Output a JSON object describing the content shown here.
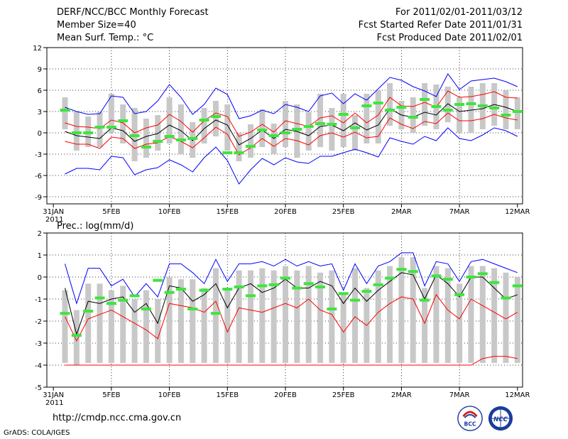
{
  "header": {
    "title": "DERF/NCC/BCC Monthly Forecast",
    "member_size": "Member Size=40",
    "variable": "Mean Surf. Temp.: °C",
    "period": "For 2011/02/01-2011/03/12",
    "start_date": "Fcst Started Refer Date 2011/01/31",
    "produced_date": "Fcst Produced Date 2011/02/01"
  },
  "footer": {
    "url": "http://cmdp.ncc.cma.gov.cn",
    "credit": "GrADS: COLA/IGES",
    "logo_bcc": "BCC",
    "logo_ncc": "NCC"
  },
  "colors": {
    "mean": "#000000",
    "spread": "#ff0000",
    "extreme": "#0000ff",
    "median": "#3ce63c",
    "box": "#c8c8c8"
  },
  "chart_data": [
    {
      "type": "line",
      "title": "Mean Surf. Temp.: °C",
      "xlabels": [
        "31JAN\n2011",
        "5FEB",
        "10FEB",
        "15FEB",
        "20FEB",
        "25FEB",
        "2MAR",
        "7MAR",
        "12MAR"
      ],
      "xlabel_days": [
        0,
        5,
        10,
        15,
        20,
        25,
        30,
        35,
        40
      ],
      "ylim": [
        -10,
        12
      ],
      "yticks": [
        12,
        9,
        6,
        3,
        0,
        -3,
        -6,
        -9
      ],
      "days": [
        1,
        2,
        3,
        4,
        5,
        6,
        7,
        8,
        9,
        10,
        11,
        12,
        13,
        14,
        15,
        16,
        17,
        18,
        19,
        20,
        21,
        22,
        23,
        24,
        25,
        26,
        27,
        28,
        29,
        30,
        31,
        32,
        33,
        34,
        35,
        36,
        37,
        38,
        39,
        40
      ],
      "series": [
        {
          "name": "upper",
          "color": "#0000ff",
          "values": [
            3.6,
            3.0,
            2.6,
            2.7,
            5.2,
            5.0,
            2.7,
            3.0,
            4.5,
            6.8,
            5.0,
            2.6,
            4.0,
            6.3,
            5.4,
            2.0,
            2.4,
            3.2,
            2.7,
            4.0,
            3.6,
            3.0,
            5.2,
            5.6,
            4.1,
            5.5,
            4.6,
            6.2,
            7.8,
            7.4,
            6.5,
            5.9,
            5.1,
            8.3,
            6.1,
            7.3,
            7.5,
            7.7,
            7.2,
            6.5
          ]
        },
        {
          "name": "upper-spread",
          "color": "#ff0000",
          "values": [
            1.4,
            0.9,
            0.8,
            0.6,
            1.8,
            1.4,
            0.0,
            0.7,
            1.1,
            2.6,
            1.6,
            0.1,
            1.7,
            2.8,
            2.3,
            -0.5,
            0.1,
            1.2,
            0.1,
            1.7,
            1.3,
            0.9,
            2.1,
            2.4,
            1.4,
            2.8,
            1.4,
            2.5,
            5.0,
            3.8,
            3.7,
            4.3,
            3.6,
            5.9,
            5.0,
            5.1,
            5.4,
            5.8,
            5.0,
            4.9
          ]
        },
        {
          "name": "mean",
          "color": "#000000",
          "values": [
            0.2,
            -0.4,
            -0.6,
            -0.8,
            0.7,
            0.3,
            -1.2,
            -0.5,
            -0.1,
            1.1,
            0.3,
            -1.1,
            0.6,
            1.8,
            1.1,
            -1.7,
            -0.8,
            0.4,
            -0.8,
            0.5,
            0.2,
            -0.4,
            0.9,
            1.1,
            0.3,
            1.4,
            0.4,
            1.1,
            3.4,
            2.5,
            2.2,
            2.9,
            2.5,
            4.1,
            3.0,
            3.2,
            3.4,
            4.0,
            3.6,
            3.0
          ]
        },
        {
          "name": "lower-spread",
          "color": "#ff0000",
          "values": [
            -1.2,
            -1.6,
            -1.6,
            -2.2,
            -0.6,
            -0.8,
            -2.2,
            -1.6,
            -1.4,
            -0.5,
            -1.2,
            -2.1,
            -0.7,
            0.8,
            -0.2,
            -3.1,
            -2.1,
            -0.8,
            -1.9,
            -0.8,
            -1.1,
            -1.7,
            -0.4,
            0.0,
            -0.6,
            0.1,
            -0.7,
            -0.5,
            2.1,
            1.2,
            0.6,
            1.6,
            1.3,
            2.8,
            1.7,
            1.7,
            2.0,
            2.6,
            2.1,
            1.8
          ]
        },
        {
          "name": "lower",
          "color": "#0000ff",
          "values": [
            -5.8,
            -5.0,
            -5.0,
            -5.2,
            -3.3,
            -3.5,
            -5.9,
            -5.2,
            -4.9,
            -3.8,
            -4.5,
            -5.5,
            -3.5,
            -2.0,
            -3.9,
            -7.2,
            -5.2,
            -3.6,
            -4.5,
            -3.5,
            -4.1,
            -4.3,
            -3.3,
            -3.3,
            -2.8,
            -2.3,
            -2.8,
            -3.4,
            -0.7,
            -1.2,
            -1.6,
            -0.5,
            -1.1,
            0.7,
            -0.8,
            -1.1,
            -0.3,
            0.7,
            0.3,
            -0.5
          ]
        }
      ],
      "median": [
        3.2,
        0.0,
        0.0,
        0.8,
        0.8,
        1.7,
        -0.4,
        -2.0,
        -1.2,
        -0.5,
        -1.0,
        -0.8,
        1.8,
        2.3,
        -2.8,
        -2.8,
        -1.9,
        0.4,
        -0.4,
        0.0,
        0.5,
        0.9,
        1.3,
        1.2,
        2.6,
        0.7,
        3.8,
        4.2,
        3.2,
        3.6,
        2.2,
        4.7,
        3.7,
        3.2,
        4.0,
        4.1,
        3.8,
        3.5,
        2.5,
        3.0
      ],
      "box_high": [
        5.0,
        3.0,
        2.3,
        3.0,
        5.5,
        4.0,
        3.5,
        2.0,
        2.5,
        5.0,
        4.0,
        1.5,
        3.5,
        4.5,
        4.0,
        0.0,
        1.2,
        3.3,
        1.3,
        4.5,
        4.0,
        2.9,
        5.5,
        3.5,
        5.5,
        2.5,
        5.5,
        6.0,
        7.0,
        4.5,
        5.0,
        7.0,
        6.8,
        6.5,
        5.0,
        6.5,
        7.0,
        7.0,
        6.0,
        5.0
      ],
      "box_low": [
        0.5,
        -2.5,
        -2.0,
        -2.0,
        0.0,
        -1.5,
        -4.0,
        -3.5,
        -2.5,
        -1.5,
        -3.0,
        -3.5,
        -1.5,
        -0.5,
        -2.5,
        -4.0,
        -3.5,
        -2.0,
        -3.0,
        -2.0,
        -3.5,
        -2.5,
        -2.0,
        -2.5,
        -2.0,
        -2.5,
        -1.5,
        -1.5,
        1.0,
        0.5,
        0.0,
        1.0,
        0.5,
        1.5,
        0.0,
        0.0,
        0.5,
        1.0,
        0.5,
        0.5
      ]
    },
    {
      "type": "line",
      "title": "Prec.: log(mm/d)",
      "xlabels": [
        "31JAN\n2011",
        "5FEB",
        "10FEB",
        "15FEB",
        "20FEB",
        "25FEB",
        "2MAR",
        "7MAR",
        "12MAR"
      ],
      "xlabel_days": [
        0,
        5,
        10,
        15,
        20,
        25,
        30,
        35,
        40
      ],
      "ylim": [
        -5,
        2
      ],
      "yticks": [
        2,
        1,
        0,
        -1,
        -2,
        -3,
        -4,
        -5
      ],
      "days": [
        1,
        2,
        3,
        4,
        5,
        6,
        7,
        8,
        9,
        10,
        11,
        12,
        13,
        14,
        15,
        16,
        17,
        18,
        19,
        20,
        21,
        22,
        23,
        24,
        25,
        26,
        27,
        28,
        29,
        30,
        31,
        32,
        33,
        34,
        35,
        36,
        37,
        38,
        39,
        40
      ],
      "series": [
        {
          "name": "upper",
          "color": "#0000ff",
          "values": [
            0.6,
            -1.2,
            0.4,
            0.4,
            -0.4,
            -0.1,
            -0.9,
            -0.3,
            -0.9,
            0.6,
            0.6,
            0.2,
            -0.3,
            0.8,
            -0.2,
            0.6,
            0.6,
            0.7,
            0.5,
            0.8,
            0.5,
            0.7,
            0.5,
            0.6,
            -0.6,
            0.6,
            -0.3,
            0.5,
            0.7,
            1.1,
            1.1,
            -0.4,
            0.7,
            0.6,
            -0.2,
            0.7,
            0.8,
            0.6,
            0.4,
            0.2
          ]
        },
        {
          "name": "mean",
          "color": "#000000",
          "values": [
            -0.5,
            -2.6,
            -1.1,
            -1.2,
            -1.0,
            -0.9,
            -1.6,
            -1.2,
            -2.1,
            -0.4,
            -0.5,
            -1.1,
            -0.8,
            -0.3,
            -1.4,
            -0.5,
            -0.3,
            -0.7,
            -0.5,
            -0.1,
            -0.5,
            -0.5,
            -0.2,
            -0.4,
            -1.2,
            -0.5,
            -1.1,
            -0.6,
            -0.2,
            0.2,
            0.1,
            -1.0,
            0.1,
            -0.3,
            -0.9,
            0.0,
            0.0,
            -0.5,
            -1.0,
            -0.8
          ]
        },
        {
          "name": "lower-spread",
          "color": "#ff0000",
          "values": [
            -1.8,
            -2.9,
            -1.9,
            -1.7,
            -1.5,
            -1.8,
            -2.1,
            -2.4,
            -2.8,
            -1.2,
            -1.3,
            -1.4,
            -1.6,
            -1.1,
            -2.5,
            -1.4,
            -1.5,
            -1.6,
            -1.4,
            -1.2,
            -1.4,
            -1.0,
            -1.5,
            -1.7,
            -2.5,
            -1.8,
            -2.2,
            -1.6,
            -1.2,
            -0.9,
            -1.0,
            -2.1,
            -0.8,
            -1.5,
            -1.9,
            -1.0,
            -1.3,
            -1.6,
            -1.9,
            -1.6
          ]
        },
        {
          "name": "floor",
          "color": "#ff0000",
          "values": [
            -4.0,
            -4.0,
            -4.0,
            -4.0,
            -4.0,
            -4.0,
            -4.0,
            -4.0,
            -4.0,
            -4.0,
            -4.0,
            -4.0,
            -4.0,
            -4.0,
            -4.0,
            -4.0,
            -4.0,
            -4.0,
            -4.0,
            -4.0,
            -4.0,
            -4.0,
            -4.0,
            -4.0,
            -4.0,
            -4.0,
            -4.0,
            -4.0,
            -4.0,
            -4.0,
            -4.0,
            -4.0,
            -4.0,
            -4.0,
            -4.0,
            -4.0,
            -3.7,
            -3.6,
            -3.6,
            -3.7
          ]
        }
      ],
      "median": [
        -1.65,
        -2.65,
        -1.55,
        -0.95,
        -1.2,
        -1.05,
        -0.85,
        -1.45,
        -0.15,
        -0.7,
        -0.55,
        -1.45,
        -0.6,
        -1.65,
        -0.55,
        -0.45,
        -0.85,
        -0.4,
        -0.35,
        -0.05,
        -0.5,
        -0.3,
        -0.45,
        -1.45,
        -0.75,
        -1.05,
        -0.65,
        -0.35,
        -0.05,
        0.35,
        0.25,
        -1.05,
        0.05,
        -0.1,
        -0.8,
        0.0,
        0.15,
        -0.25,
        -0.95,
        -0.4
      ],
      "box_high": [
        -0.6,
        -1.5,
        -0.3,
        -0.3,
        -0.6,
        -0.4,
        -1.0,
        -0.6,
        -1.0,
        0.0,
        -0.1,
        -0.1,
        -0.5,
        0.4,
        -0.6,
        0.3,
        0.3,
        0.4,
        0.3,
        0.5,
        0.3,
        0.5,
        0.2,
        0.3,
        -0.8,
        0.4,
        -0.5,
        0.3,
        0.5,
        0.9,
        0.9,
        -0.5,
        0.5,
        0.4,
        -0.3,
        0.5,
        0.5,
        0.4,
        0.2,
        0.0
      ],
      "box_low": [
        -3.9,
        -4.0,
        -3.9,
        -3.9,
        -3.9,
        -3.9,
        -3.9,
        -3.9,
        -3.9,
        -3.9,
        -3.9,
        -3.9,
        -3.9,
        -3.9,
        -3.9,
        -3.9,
        -3.9,
        -3.9,
        -3.9,
        -3.9,
        -3.9,
        -3.9,
        -3.9,
        -3.9,
        -3.9,
        -3.9,
        -3.9,
        -3.9,
        -3.9,
        -3.9,
        -3.9,
        -3.9,
        -3.9,
        -3.9,
        -3.9,
        -3.9,
        -3.9,
        -3.9,
        -3.9,
        -3.9
      ]
    }
  ]
}
